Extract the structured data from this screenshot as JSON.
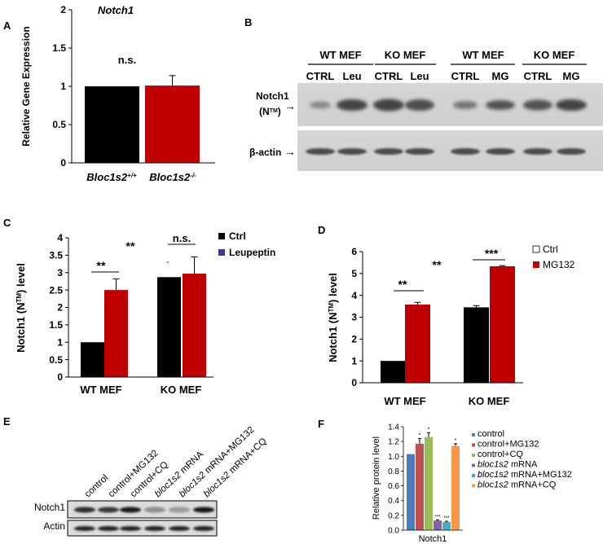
{
  "panels": {
    "A": {
      "letter": "A",
      "title": "Notch1",
      "ylabel": "Relative Gene Expression",
      "ticks": [
        "0",
        "0.5",
        "1",
        "1.5",
        "2"
      ],
      "annotation": "n.s.",
      "categories": [
        {
          "base": "Bloc1s2",
          "sup": "+/+"
        },
        {
          "base": "Bloc1s2",
          "sup": "-/-"
        }
      ],
      "colors": [
        "#000000",
        "#c00000"
      ]
    },
    "B": {
      "letter": "B",
      "groups": [
        "WT MEF",
        "KO MEF",
        "WT MEF",
        "KO MEF"
      ],
      "lanes": [
        "CTRL",
        "Leu",
        "CTRL",
        "Leu",
        "CTRL",
        "MG",
        "CTRL",
        "MG"
      ],
      "row1_label": "Notch1",
      "row1_label2_pre": "(N",
      "row1_label2_sup": "TM",
      "row1_label2_post": ")",
      "row2_label": "β-actin",
      "arrow": "→"
    },
    "C": {
      "letter": "C",
      "ylabel_pre": "Notch1 (N",
      "ylabel_sup": "TM",
      "ylabel_post": ") level",
      "ticks": [
        "0",
        "0.5",
        "1",
        "1.5",
        "2",
        "2.5",
        "3",
        "3.5",
        "4"
      ],
      "categories": [
        "WT MEF",
        "KO MEF"
      ],
      "legend": [
        "Ctrl",
        "Leupeptin"
      ],
      "legend_colors": [
        "#000000",
        "#3a3a9a"
      ],
      "sig_left": "**",
      "sig_mid": "**",
      "sig_right": "n.s.",
      "dash": "-"
    },
    "D": {
      "letter": "D",
      "ylabel_pre": "Notch1 (N",
      "ylabel_sup": "TM",
      "ylabel_post": ") level",
      "ticks": [
        "0",
        "1",
        "2",
        "3",
        "4",
        "5",
        "6"
      ],
      "categories": [
        "WT MEF",
        "KO MEF"
      ],
      "legend": [
        "Ctrl",
        "MG132"
      ],
      "sig_left": "**",
      "sig_mid": "**",
      "sig_right": "***"
    },
    "E": {
      "letter": "E",
      "lanes": [
        "control",
        "control+MG132",
        "control+CQ",
        "bloc1s2 mRNA",
        "bloc1s2 mRNA+MG132",
        "bloc1s2 mRNA+CQ"
      ],
      "row1_label": "Notch1",
      "row2_label": "Actin"
    },
    "F": {
      "letter": "F",
      "ylabel": "Relative protein level",
      "ticks": [
        "0.0",
        "0.2",
        "0.4",
        "0.6",
        "0.8",
        "1.0",
        "1.2",
        "1.4"
      ],
      "xlabel": "Notch1",
      "legend": [
        {
          "pre": "",
          "ital": "",
          "post": "control"
        },
        {
          "pre": "",
          "ital": "",
          "post": "control+MG132"
        },
        {
          "pre": "",
          "ital": "",
          "post": "control+CQ"
        },
        {
          "pre": "",
          "ital": "bloc1s2",
          "post": " mRNA"
        },
        {
          "pre": "",
          "ital": "bloc1s2",
          "post": " mRNA+MG132"
        },
        {
          "pre": "",
          "ital": "bloc1s2",
          "post": " mRNA+CQ"
        }
      ],
      "colors": [
        "#4a7ebb",
        "#c0504d",
        "#9bbb59",
        "#8064a2",
        "#4bacc6",
        "#f79646"
      ],
      "marks": [
        "*",
        "*",
        "***",
        "***",
        "*"
      ]
    }
  },
  "chart_data": [
    {
      "type": "bar",
      "panel": "A",
      "title": "Notch1",
      "categories": [
        "Bloc1s2+/+",
        "Bloc1s2-/-"
      ],
      "values": [
        1.0,
        1.01
      ],
      "errors": [
        0.0,
        0.13
      ],
      "ylabel": "Relative Gene Expression",
      "ylim": [
        0,
        2
      ]
    },
    {
      "type": "bar",
      "panel": "C",
      "categories": [
        "WT MEF",
        "KO MEF"
      ],
      "series": [
        {
          "name": "Ctrl",
          "values": [
            1.0,
            2.87
          ],
          "errors": [
            0.0,
            0.0
          ]
        },
        {
          "name": "Leupeptin",
          "values": [
            2.5,
            2.97
          ],
          "errors": [
            0.32,
            0.48
          ]
        }
      ],
      "ylabel": "Notch1 (NTM) level",
      "ylim": [
        0,
        4
      ]
    },
    {
      "type": "bar",
      "panel": "D",
      "categories": [
        "WT MEF",
        "KO MEF"
      ],
      "series": [
        {
          "name": "Ctrl",
          "values": [
            1.0,
            3.45
          ],
          "errors": [
            0.0,
            0.08
          ]
        },
        {
          "name": "MG132",
          "values": [
            3.58,
            5.33
          ],
          "errors": [
            0.1,
            0.03
          ]
        }
      ],
      "ylabel": "Notch1 (NTM) level",
      "ylim": [
        0,
        6
      ]
    },
    {
      "type": "bar",
      "panel": "F",
      "categories": [
        "Notch1"
      ],
      "series": [
        {
          "name": "control",
          "values": [
            1.03
          ],
          "errors": [
            0.0
          ]
        },
        {
          "name": "control+MG132",
          "values": [
            1.17
          ],
          "errors": [
            0.07
          ]
        },
        {
          "name": "control+CQ",
          "values": [
            1.26
          ],
          "errors": [
            0.06
          ]
        },
        {
          "name": "bloc1s2 mRNA",
          "values": [
            0.13
          ],
          "errors": [
            0.01
          ]
        },
        {
          "name": "bloc1s2 mRNA+MG132",
          "values": [
            0.11
          ],
          "errors": [
            0.01
          ]
        },
        {
          "name": "bloc1s2 mRNA+CQ",
          "values": [
            1.14
          ],
          "errors": [
            0.03
          ]
        }
      ],
      "ylabel": "Relative protein level",
      "xlabel": "Notch1",
      "ylim": [
        0,
        1.4
      ]
    }
  ]
}
